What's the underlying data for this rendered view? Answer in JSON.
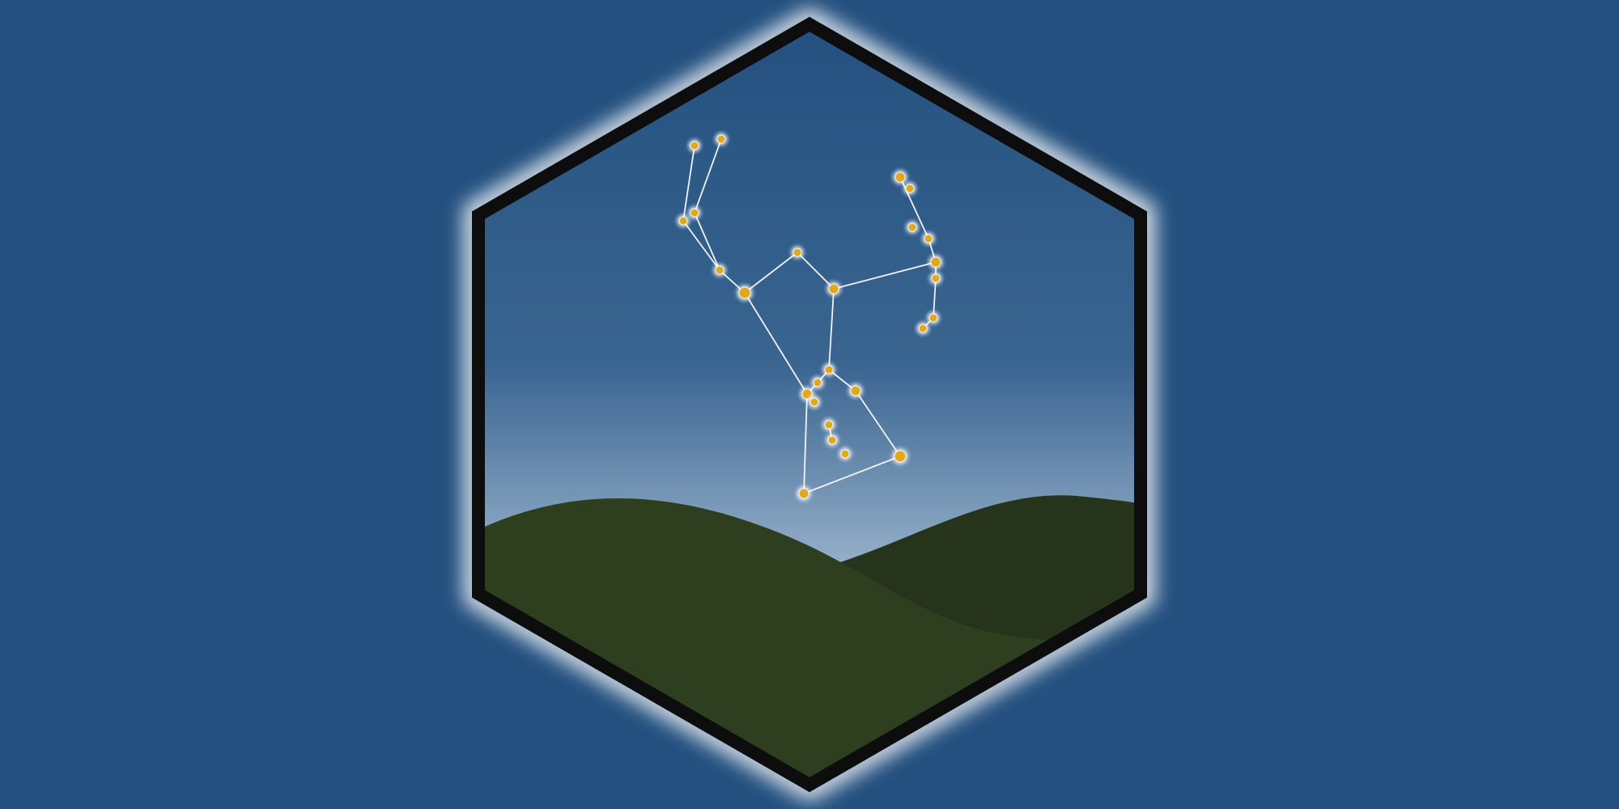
{
  "scene": {
    "subject": "constellation-badge",
    "colors": {
      "page_background": "#23507f",
      "sky_top": "#23507f",
      "sky_mid": "#3a6591",
      "sky_horizon": "#9ab3cc",
      "frame": "#0d0d0d",
      "frame_glow": "#ffffff",
      "hill_front": "#2e3f20",
      "hill_back": "#27341c",
      "star_fill": "#e0a81e",
      "star_halo": "#ffffff",
      "line": "#f2f2f2"
    },
    "icons": {
      "frame": "hexagon-frame-icon",
      "star": "star-icon",
      "hill": "hill-icon"
    }
  }
}
